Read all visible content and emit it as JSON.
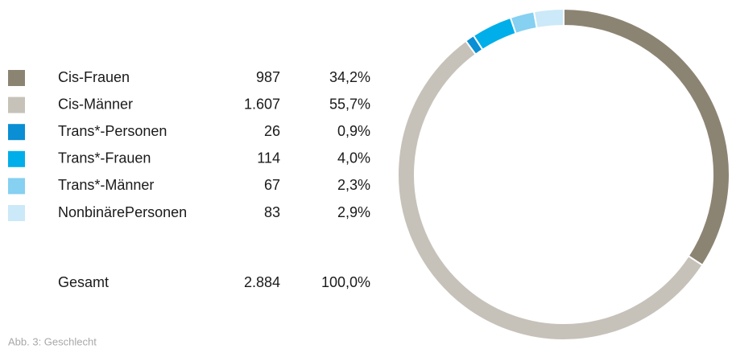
{
  "chart_data": {
    "type": "donut",
    "categories": [
      "Cis-Frauen",
      "Cis-Männer",
      "Trans*-Personen",
      "Trans*-Frauen",
      "Trans*-Männer",
      "NonbinärePersonen"
    ],
    "values": [
      987,
      1607,
      26,
      114,
      67,
      83
    ],
    "value_labels": [
      "987",
      "1.607",
      "26",
      "114",
      "67",
      "83"
    ],
    "shares": [
      34.2,
      55.7,
      0.9,
      4.0,
      2.3,
      2.9
    ],
    "share_labels": [
      "34,2%",
      "55,7%",
      "0,9%",
      "4,0%",
      "2,3%",
      "2,9%"
    ],
    "colors": [
      "#8c8473",
      "#c6c2b9",
      "#0a8ed4",
      "#00aee9",
      "#86d0f1",
      "#cbe9f8"
    ],
    "total_label": "Gesamt",
    "total": 2884,
    "total_value_label": "2.884",
    "total_share": 100,
    "total_share_label": "100,0%",
    "caption": "Abb. 3: Geschlecht"
  }
}
